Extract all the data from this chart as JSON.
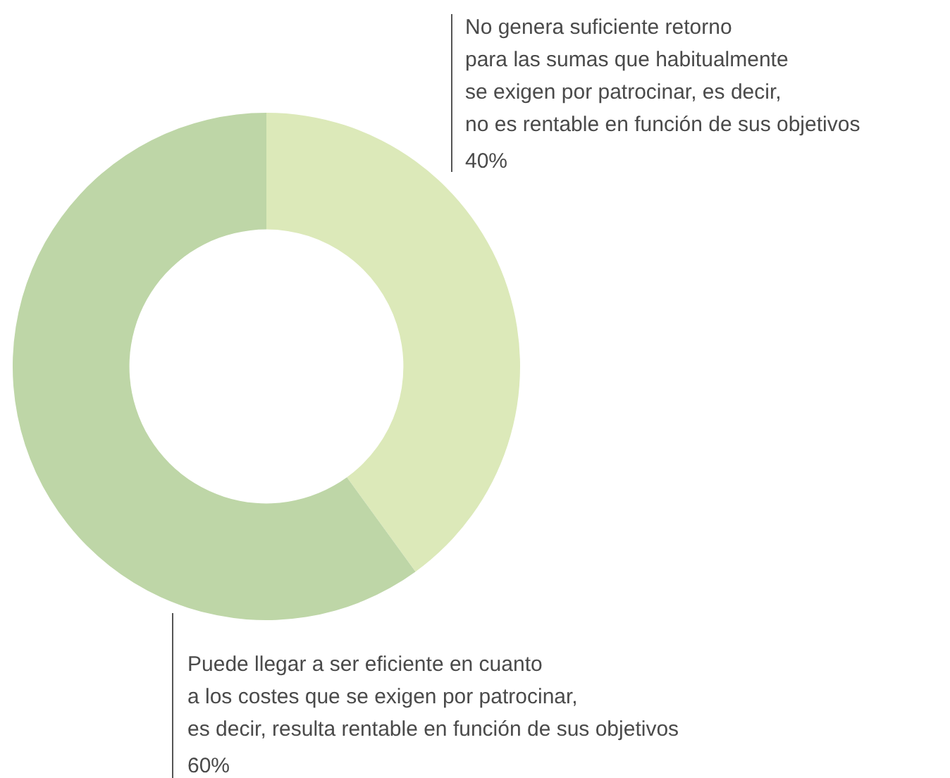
{
  "chart_data": {
    "type": "donut",
    "categories": [
      "No genera suficiente retorno\npara las sumas que habitualmente\nse exigen por patrocinar, es decir,\nno es rentable en función de sus objetivos",
      "Puede llegar a ser eficiente en cuanto\na los costes que se exigen por patrocinar,\nes decir, resulta rentable en función de sus objetivos"
    ],
    "values": [
      40,
      60
    ],
    "value_labels": [
      "40%",
      "60%"
    ],
    "colors": [
      "#dce9b9",
      "#bed6a7"
    ]
  }
}
